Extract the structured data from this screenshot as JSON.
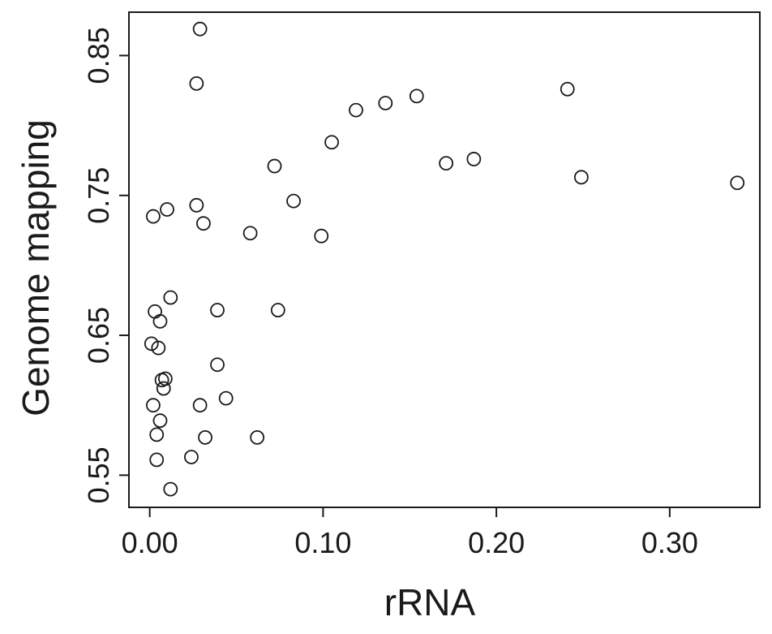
{
  "chart_data": {
    "type": "scatter",
    "title": "",
    "xlabel": "rRNA",
    "ylabel": "Genome mapping",
    "xlim": [
      -0.012,
      0.352
    ],
    "ylim": [
      0.527,
      0.881
    ],
    "x_ticks": [
      0.0,
      0.1,
      0.2,
      0.3
    ],
    "x_tick_labels": [
      "0.00",
      "0.10",
      "0.20",
      "0.30"
    ],
    "y_ticks": [
      0.55,
      0.65,
      0.75,
      0.85
    ],
    "y_tick_labels": [
      "0.55",
      "0.65",
      "0.75",
      "0.85"
    ],
    "grid": false,
    "legend": null,
    "marker": "open-circle",
    "colors": {
      "marker": "#1a1a1a",
      "axes": "#1a1a1a",
      "background": "#ffffff"
    },
    "series": [
      {
        "points": [
          {
            "x": 0.029,
            "y": 0.869
          },
          {
            "x": 0.027,
            "y": 0.83
          },
          {
            "x": 0.241,
            "y": 0.826
          },
          {
            "x": 0.154,
            "y": 0.821
          },
          {
            "x": 0.136,
            "y": 0.816
          },
          {
            "x": 0.119,
            "y": 0.811
          },
          {
            "x": 0.105,
            "y": 0.788
          },
          {
            "x": 0.187,
            "y": 0.776
          },
          {
            "x": 0.171,
            "y": 0.773
          },
          {
            "x": 0.072,
            "y": 0.771
          },
          {
            "x": 0.249,
            "y": 0.763
          },
          {
            "x": 0.339,
            "y": 0.759
          },
          {
            "x": 0.083,
            "y": 0.746
          },
          {
            "x": 0.027,
            "y": 0.743
          },
          {
            "x": 0.01,
            "y": 0.74
          },
          {
            "x": 0.002,
            "y": 0.735
          },
          {
            "x": 0.031,
            "y": 0.73
          },
          {
            "x": 0.058,
            "y": 0.723
          },
          {
            "x": 0.099,
            "y": 0.721
          },
          {
            "x": 0.012,
            "y": 0.677
          },
          {
            "x": 0.003,
            "y": 0.667
          },
          {
            "x": 0.039,
            "y": 0.668
          },
          {
            "x": 0.074,
            "y": 0.668
          },
          {
            "x": 0.006,
            "y": 0.66
          },
          {
            "x": 0.001,
            "y": 0.644
          },
          {
            "x": 0.005,
            "y": 0.641
          },
          {
            "x": 0.039,
            "y": 0.629
          },
          {
            "x": 0.009,
            "y": 0.619
          },
          {
            "x": 0.007,
            "y": 0.618
          },
          {
            "x": 0.008,
            "y": 0.612
          },
          {
            "x": 0.044,
            "y": 0.605
          },
          {
            "x": 0.002,
            "y": 0.6
          },
          {
            "x": 0.029,
            "y": 0.6
          },
          {
            "x": 0.006,
            "y": 0.589
          },
          {
            "x": 0.004,
            "y": 0.579
          },
          {
            "x": 0.032,
            "y": 0.577
          },
          {
            "x": 0.062,
            "y": 0.577
          },
          {
            "x": 0.024,
            "y": 0.563
          },
          {
            "x": 0.004,
            "y": 0.561
          },
          {
            "x": 0.012,
            "y": 0.54
          }
        ]
      }
    ]
  }
}
